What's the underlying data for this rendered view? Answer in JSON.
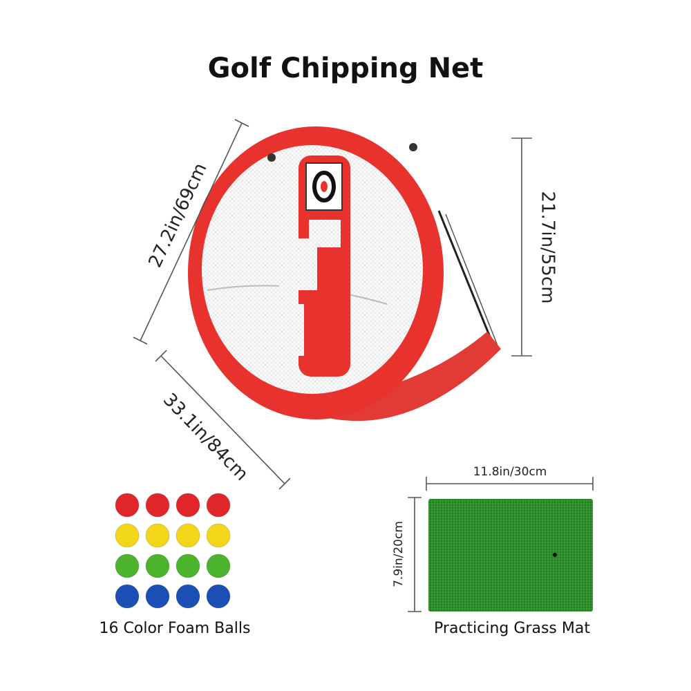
{
  "header": {
    "title": "Golf Chipping Net"
  },
  "net": {
    "diagonal_height": "27.2in/69cm",
    "height": "21.7in/55cm",
    "width": "33.1in/84cm"
  },
  "balls": {
    "label": "16 Color Foam Balls"
  },
  "mat": {
    "width": "11.8in/30cm",
    "height": "7.9in/20cm",
    "label": "Practicing Grass Mat"
  }
}
